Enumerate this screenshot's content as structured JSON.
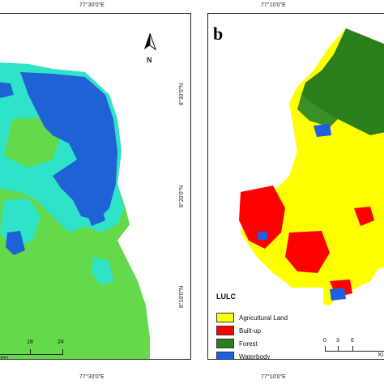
{
  "top_labels": {
    "left": "77°30'0\"E",
    "right": "77°10'0\"E"
  },
  "bottom_labels": {
    "left": "77°30'0\"E",
    "right": "77°10'0\"E"
  },
  "panel_a": {
    "north_letter": "N",
    "lat_labels": [
      "8°30'0\"N",
      "8°20'0\"N",
      "8°10'0\"N"
    ],
    "scale_text": "eters",
    "scale_ticks": [
      "18",
      "24"
    ],
    "colors": {
      "deep": "#1f62d6",
      "cyan": "#2fe3c8",
      "green": "#63d94b"
    }
  },
  "panel_b": {
    "letter": "b",
    "scale_ticks": [
      "0",
      "3",
      "6"
    ],
    "scale_unit": "Ki",
    "legend": {
      "title": "LULC",
      "items": [
        {
          "label": "Agricultural Land",
          "color": "#ffff00"
        },
        {
          "label": "Built-up",
          "color": "#ff0000"
        },
        {
          "label": "Forest",
          "color": "#2a7f1b"
        },
        {
          "label": "Waterbody",
          "color": "#1f5fe0"
        }
      ]
    }
  }
}
